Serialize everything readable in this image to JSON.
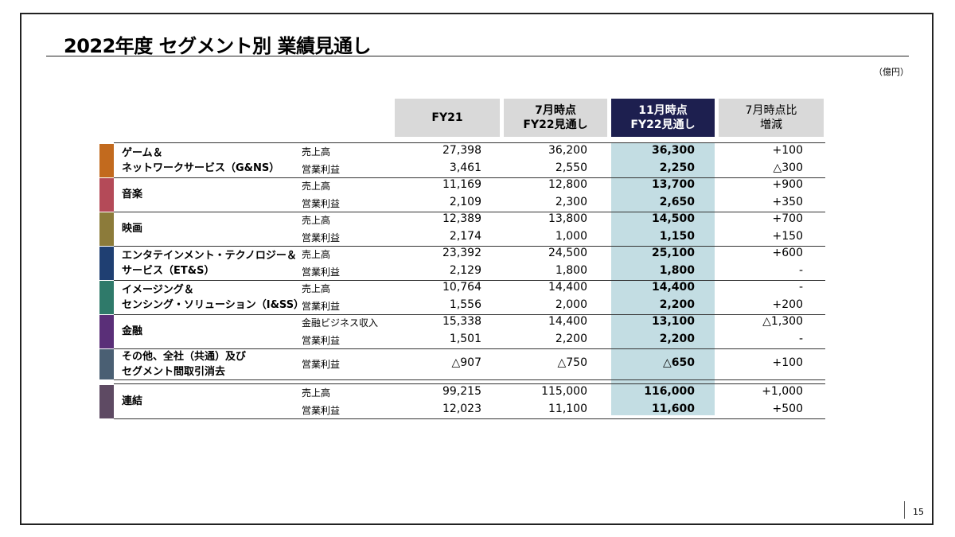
{
  "slide": {
    "title": "2022年度 セグメント別 業績見通し",
    "unit": "（億円）",
    "page_number": "15"
  },
  "header": {
    "fy21": "FY21",
    "jul_line1": "7月時点",
    "jul_line2": "FY22見通し",
    "nov_line1": "11月時点",
    "nov_line2": "FY22見通し",
    "diff_line1": "7月時点比",
    "diff_line2": "増減"
  },
  "colors": {
    "header_gray": "#d9d9d9",
    "header_navy": "#1d1f4f",
    "highlight": "#c3dde3"
  },
  "segments": [
    {
      "name_line1": "ゲーム＆",
      "name_line2": "ネットワークサービス（G&NS）",
      "color": "#c26a1e",
      "rows": [
        {
          "metric": "売上高",
          "fy21": "27,398",
          "jul": "36,200",
          "nov": "36,300",
          "diff": "+100"
        },
        {
          "metric": "営業利益",
          "fy21": "3,461",
          "jul": "2,550",
          "nov": "2,250",
          "diff": "△300"
        }
      ]
    },
    {
      "name_line1": "音楽",
      "name_line2": "",
      "color": "#b44a58",
      "rows": [
        {
          "metric": "売上高",
          "fy21": "11,169",
          "jul": "12,800",
          "nov": "13,700",
          "diff": "+900"
        },
        {
          "metric": "営業利益",
          "fy21": "2,109",
          "jul": "2,300",
          "nov": "2,650",
          "diff": "+350"
        }
      ]
    },
    {
      "name_line1": "映画",
      "name_line2": "",
      "color": "#8c7b3a",
      "rows": [
        {
          "metric": "売上高",
          "fy21": "12,389",
          "jul": "13,800",
          "nov": "14,500",
          "diff": "+700"
        },
        {
          "metric": "営業利益",
          "fy21": "2,174",
          "jul": "1,000",
          "nov": "1,150",
          "diff": "+150"
        }
      ]
    },
    {
      "name_line1": "エンタテインメント・テクノロジー＆",
      "name_line2": "サービス（ET&S）",
      "color": "#1f3f72",
      "rows": [
        {
          "metric": "売上高",
          "fy21": "23,392",
          "jul": "24,500",
          "nov": "25,100",
          "diff": "+600"
        },
        {
          "metric": "営業利益",
          "fy21": "2,129",
          "jul": "1,800",
          "nov": "1,800",
          "diff": "-"
        }
      ]
    },
    {
      "name_line1": "イメージング＆",
      "name_line2": "センシング・ソリューション（I&SS）",
      "color": "#2f7a6a",
      "rows": [
        {
          "metric": "売上高",
          "fy21": "10,764",
          "jul": "14,400",
          "nov": "14,400",
          "diff": "-"
        },
        {
          "metric": "営業利益",
          "fy21": "1,556",
          "jul": "2,000",
          "nov": "2,200",
          "diff": "+200"
        }
      ]
    },
    {
      "name_line1": "金融",
      "name_line2": "",
      "color": "#5a2f78",
      "rows": [
        {
          "metric": "金融ビジネス収入",
          "fy21": "15,338",
          "jul": "14,400",
          "nov": "13,100",
          "diff": "△1,300"
        },
        {
          "metric": "営業利益",
          "fy21": "1,501",
          "jul": "2,200",
          "nov": "2,200",
          "diff": "-"
        }
      ]
    },
    {
      "name_line1": "その他、全社（共通）及び",
      "name_line2": "セグメント間取引消去",
      "color": "#4a5f73",
      "rows": [
        {
          "metric": "営業利益",
          "fy21": "△907",
          "jul": "△750",
          "nov": "△650",
          "diff": "+100"
        }
      ]
    }
  ],
  "consolidated": {
    "name_line1": "連結",
    "color": "#5e4a63",
    "rows": [
      {
        "metric": "売上高",
        "fy21": "99,215",
        "jul": "115,000",
        "nov": "116,000",
        "diff": "+1,000"
      },
      {
        "metric": "営業利益",
        "fy21": "12,023",
        "jul": "11,100",
        "nov": "11,600",
        "diff": "+500"
      }
    ]
  }
}
